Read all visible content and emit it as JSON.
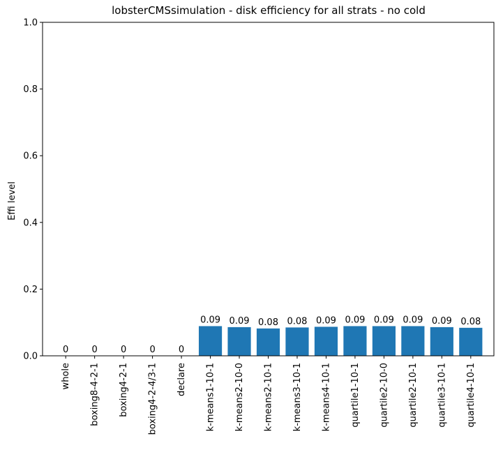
{
  "chart_data": {
    "type": "bar",
    "title": "lobsterCMSsimulation - disk efficiency for all strats - no cold",
    "xlabel": "",
    "ylabel": "Effi level",
    "ylim": [
      0,
      1
    ],
    "yticks": [
      "0.0",
      "0.2",
      "0.4",
      "0.6",
      "0.8",
      "1.0"
    ],
    "categories": [
      "whole",
      "boxing8-4-2-1",
      "boxing4-2-1",
      "boxing4-2-4/3-1",
      "declare",
      "k-means1-10-1",
      "k-means2-10-0",
      "k-means2-10-1",
      "k-means3-10-1",
      "k-means4-10-1",
      "quartile1-10-1",
      "quartile2-10-0",
      "quartile2-10-1",
      "quartile3-10-1",
      "quartile4-10-1"
    ],
    "values": [
      0,
      0,
      0,
      0,
      0,
      0.089,
      0.086,
      0.082,
      0.085,
      0.087,
      0.089,
      0.089,
      0.089,
      0.086,
      0.084
    ],
    "data_labels": [
      "0",
      "0",
      "0",
      "0",
      "0",
      "0.09",
      "0.09",
      "0.08",
      "0.08",
      "0.09",
      "0.09",
      "0.09",
      "0.09",
      "0.09",
      "0.08"
    ],
    "bar_color": "#1f77b4",
    "grid": false,
    "legend": "none"
  }
}
